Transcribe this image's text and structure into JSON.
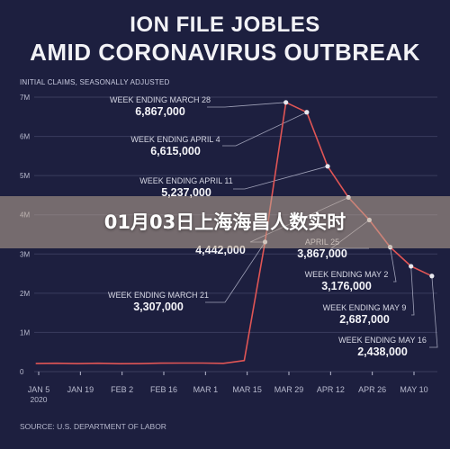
{
  "header": {
    "title_line1": "ION FILE JOBLES",
    "title_line2": "AMID CORONAVIRUS OUTBREAK",
    "subtitle": "INITIAL CLAIMS, SEASONALLY ADJUSTED"
  },
  "banner": {
    "text": "01月03日上海海昌人数实时"
  },
  "footer": {
    "source": "SOURCE: U.S. DEPARTMENT OF LABOR"
  },
  "colors": {
    "background": "#1d1f3f",
    "line": "#e05555",
    "point": "#e8e8ee",
    "grid": "#3a3c5e",
    "text": "#f2f2f6",
    "muted": "#b9bbcf"
  },
  "chart_data": {
    "type": "line",
    "title": "ION FILE JOBLES AMID CORONAVIRUS OUTBREAK",
    "subtitle": "INITIAL CLAIMS, SEASONALLY ADJUSTED",
    "xlabel": "",
    "ylabel": "",
    "ylim": [
      0,
      7000000
    ],
    "yticks": [
      {
        "value": 0,
        "label": "0"
      },
      {
        "value": 1000000,
        "label": "1M"
      },
      {
        "value": 2000000,
        "label": "2M"
      },
      {
        "value": 3000000,
        "label": "3M"
      },
      {
        "value": 4000000,
        "label": "4M"
      },
      {
        "value": 5000000,
        "label": "5M"
      },
      {
        "value": 6000000,
        "label": "6M"
      },
      {
        "value": 7000000,
        "label": "7M"
      }
    ],
    "xticks": [
      {
        "date": "2020-01-05",
        "label": "JAN 5",
        "sublabel": "2020"
      },
      {
        "date": "2020-01-19",
        "label": "JAN 19"
      },
      {
        "date": "2020-02-02",
        "label": "FEB 2"
      },
      {
        "date": "2020-02-16",
        "label": "FEB 16"
      },
      {
        "date": "2020-03-01",
        "label": "MAR 1"
      },
      {
        "date": "2020-03-15",
        "label": "MAR 15"
      },
      {
        "date": "2020-03-29",
        "label": "MAR 29"
      },
      {
        "date": "2020-04-12",
        "label": "APR 12"
      },
      {
        "date": "2020-04-26",
        "label": "APR 26"
      },
      {
        "date": "2020-05-10",
        "label": "MAY 10"
      }
    ],
    "grid": true,
    "series": [
      {
        "points": [
          {
            "x": "2020-01-04",
            "y": 210000
          },
          {
            "x": "2020-01-11",
            "y": 214000
          },
          {
            "x": "2020-01-18",
            "y": 205000
          },
          {
            "x": "2020-01-25",
            "y": 213000
          },
          {
            "x": "2020-02-01",
            "y": 203000
          },
          {
            "x": "2020-02-08",
            "y": 204000
          },
          {
            "x": "2020-02-15",
            "y": 215000
          },
          {
            "x": "2020-02-22",
            "y": 219000
          },
          {
            "x": "2020-02-29",
            "y": 217000
          },
          {
            "x": "2020-03-07",
            "y": 211000
          },
          {
            "x": "2020-03-14",
            "y": 282000
          },
          {
            "x": "2020-03-21",
            "y": 3307000
          },
          {
            "x": "2020-03-28",
            "y": 6867000
          },
          {
            "x": "2020-04-04",
            "y": 6615000
          },
          {
            "x": "2020-04-11",
            "y": 5237000
          },
          {
            "x": "2020-04-18",
            "y": 4442000
          },
          {
            "x": "2020-04-25",
            "y": 3867000
          },
          {
            "x": "2020-05-02",
            "y": 3176000
          },
          {
            "x": "2020-05-09",
            "y": 2687000
          },
          {
            "x": "2020-05-16",
            "y": 2438000
          }
        ]
      }
    ],
    "annotations": [
      {
        "x": "2020-03-21",
        "label": "WEEK ENDING MARCH 21",
        "value_label": "3,307,000"
      },
      {
        "x": "2020-03-28",
        "label": "WEEK ENDING MARCH 28",
        "value_label": "6,867,000"
      },
      {
        "x": "2020-04-04",
        "label": "WEEK ENDING APRIL 4",
        "value_label": "6,615,000"
      },
      {
        "x": "2020-04-11",
        "label": "WEEK ENDING APRIL 11",
        "value_label": "5,237,000"
      },
      {
        "x": "2020-04-18",
        "label": "",
        "value_label": "4,442,000"
      },
      {
        "x": "2020-04-25",
        "label": "APRIL 25",
        "value_label": "3,867,000"
      },
      {
        "x": "2020-05-02",
        "label": "WEEK ENDING MAY 2",
        "value_label": "3,176,000"
      },
      {
        "x": "2020-05-09",
        "label": "WEEK ENDING MAY 9",
        "value_label": "2,687,000"
      },
      {
        "x": "2020-05-16",
        "label": "WEEK ENDING MAY 16",
        "value_label": "2,438,000"
      }
    ]
  }
}
